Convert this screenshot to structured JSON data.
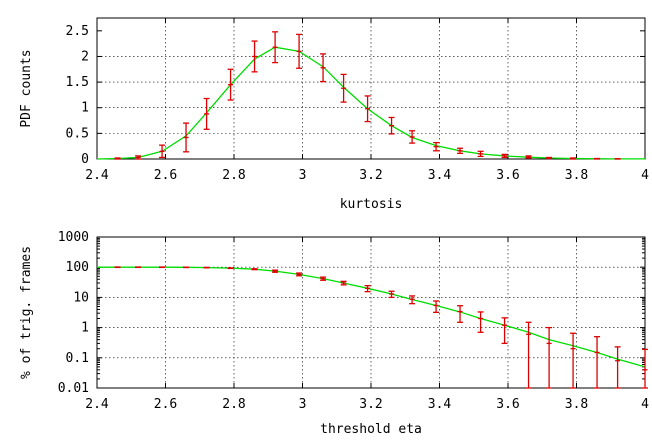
{
  "colors": {
    "fit": "#00dd00",
    "data": "#dd0000"
  },
  "chart_data": [
    {
      "type": "line",
      "xlabel": "kurtosis",
      "ylabel": "PDF counts",
      "xlim": [
        2.4,
        4.0
      ],
      "ylim": [
        0,
        2.75
      ],
      "xticks": [
        "2.4",
        "2.6",
        "2.8",
        "3",
        "3.2",
        "3.4",
        "3.6",
        "3.8",
        "4"
      ],
      "yticks": [
        "0",
        "0.5",
        "1",
        "1.5",
        "2",
        "2.5"
      ],
      "grid": true,
      "series": [
        {
          "kind": "curve",
          "x": [
            2.4,
            2.46,
            2.52,
            2.59,
            2.66,
            2.72,
            2.79,
            2.86,
            2.92,
            2.99,
            3.06,
            3.12,
            3.19,
            3.26,
            3.32,
            3.39,
            3.46,
            3.52,
            3.59,
            3.66,
            3.72,
            3.79,
            3.86,
            3.92,
            4.0
          ],
          "y": [
            0.0,
            0.01,
            0.03,
            0.15,
            0.45,
            0.9,
            1.45,
            1.95,
            2.18,
            2.1,
            1.8,
            1.4,
            0.98,
            0.65,
            0.42,
            0.26,
            0.16,
            0.1,
            0.06,
            0.035,
            0.02,
            0.01,
            0.005,
            0.003,
            0.002
          ]
        },
        {
          "kind": "points_with_errors",
          "x": [
            2.46,
            2.52,
            2.59,
            2.66,
            2.72,
            2.79,
            2.86,
            2.92,
            2.99,
            3.06,
            3.12,
            3.19,
            3.26,
            3.32,
            3.39,
            3.46,
            3.52,
            3.59,
            3.66,
            3.72,
            3.79,
            3.86,
            3.92
          ],
          "y": [
            0.01,
            0.03,
            0.15,
            0.42,
            0.88,
            1.45,
            2.0,
            2.18,
            2.1,
            1.78,
            1.38,
            0.98,
            0.65,
            0.43,
            0.24,
            0.16,
            0.1,
            0.06,
            0.04,
            0.02,
            0.01,
            0.005,
            0.002
          ],
          "err": [
            0.01,
            0.03,
            0.12,
            0.28,
            0.3,
            0.3,
            0.3,
            0.3,
            0.33,
            0.27,
            0.27,
            0.25,
            0.16,
            0.12,
            0.08,
            0.05,
            0.05,
            0.03,
            0.02,
            0.01,
            0.01,
            0.005,
            0.003
          ]
        }
      ]
    },
    {
      "type": "line",
      "xlabel": "threshold eta",
      "ylabel": "% of trig. frames",
      "xlim": [
        2.4,
        4.0
      ],
      "ylim": [
        0.01,
        1000
      ],
      "log_y": true,
      "xticks": [
        "2.4",
        "2.6",
        "2.8",
        "3",
        "3.2",
        "3.4",
        "3.6",
        "3.8",
        "4"
      ],
      "yticks": [
        "0.01",
        "0.1",
        "1",
        "10",
        "100",
        "1000"
      ],
      "grid": true,
      "series": [
        {
          "kind": "curve",
          "x": [
            2.4,
            2.46,
            2.52,
            2.59,
            2.66,
            2.72,
            2.79,
            2.86,
            2.92,
            2.99,
            3.06,
            3.12,
            3.19,
            3.26,
            3.32,
            3.39,
            3.46,
            3.52,
            3.59,
            3.66,
            3.72,
            3.79,
            3.86,
            3.92,
            4.0
          ],
          "y": [
            100,
            100,
            100,
            100,
            99,
            97,
            93,
            86,
            74,
            58,
            42,
            30,
            20,
            13,
            8.5,
            5.4,
            3.3,
            2.0,
            1.2,
            0.7,
            0.4,
            0.25,
            0.15,
            0.09,
            0.05
          ]
        },
        {
          "kind": "points_with_errors",
          "x": [
            2.46,
            2.52,
            2.59,
            2.66,
            2.72,
            2.79,
            2.86,
            2.92,
            2.99,
            3.06,
            3.12,
            3.19,
            3.26,
            3.32,
            3.39,
            3.46,
            3.52,
            3.59,
            3.66,
            3.72,
            3.79,
            3.86,
            3.92,
            4.0
          ],
          "y": [
            100,
            100,
            100,
            99,
            97,
            93,
            86,
            74,
            58,
            42,
            30,
            20,
            13,
            8.7,
            5.4,
            3.4,
            2.0,
            1.2,
            0.6,
            0.3,
            0.2,
            0.15,
            0.08,
            0.04
          ],
          "err_lo": [
            1.5,
            1.5,
            1.5,
            1.5,
            1.5,
            2,
            3,
            6,
            6,
            5,
            4,
            4.5,
            3,
            2.5,
            2.2,
            1.9,
            1.3,
            0.9,
            0.59,
            0.299,
            0.199,
            0.149,
            0.079,
            0.039
          ],
          "err_hi": [
            1.5,
            1.5,
            1.5,
            1.5,
            1.5,
            2,
            3,
            6,
            6,
            5,
            4,
            4.5,
            3,
            2.5,
            2.2,
            1.9,
            1.3,
            0.9,
            0.9,
            0.7,
            0.45,
            0.35,
            0.15,
            0.15
          ]
        }
      ]
    }
  ]
}
